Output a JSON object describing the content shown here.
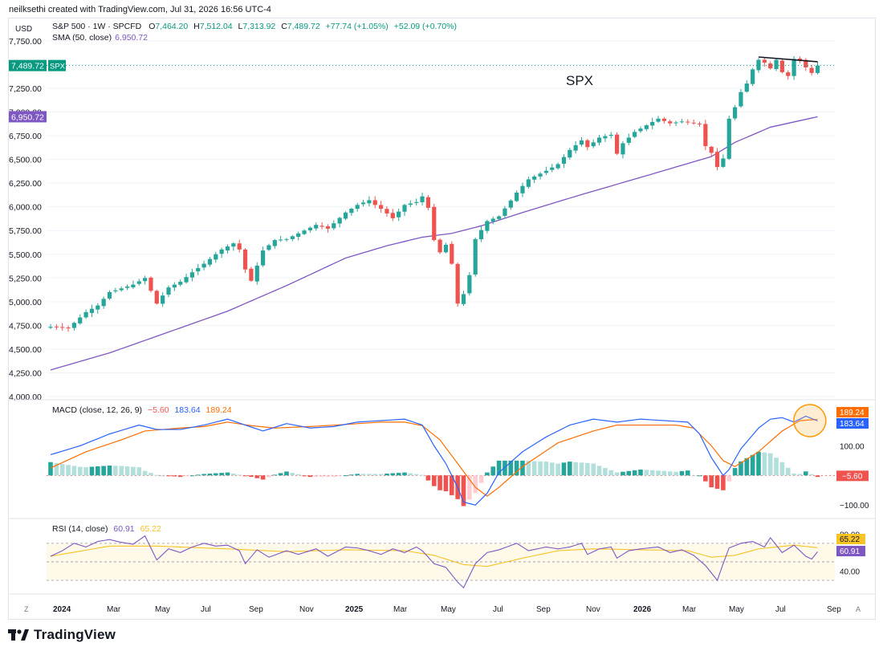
{
  "created_by": "neilksethi created with TradingView.com, Jul 31, 2026 16:56 UTC-4",
  "brand": "TradingView",
  "colors": {
    "up": "#26a69a",
    "down": "#ef5350",
    "sma": "#7e57c2",
    "macd": "#2962ff",
    "signal": "#ff6d00",
    "rsi": "#7e57c2",
    "rsi_ma": "#f7c325",
    "price_line": "#089981"
  },
  "header": {
    "currency": "USD",
    "title": "S&P 500 · 1W · SPCFD",
    "o_label": "O",
    "o_value": "7,464.20",
    "h_label": "H",
    "h_value": "7,512.04",
    "l_label": "L",
    "l_value": "7,313.92",
    "c_label": "C",
    "c_value": "7,489.72",
    "change": "+77.74 (+1.05%)",
    "change2": "+52.09 (+0.70%)",
    "sma_label": "SMA (50, close)",
    "sma_value": "6,950.72"
  },
  "annotation": "SPX",
  "price_tag": {
    "value": "7,489.72",
    "symbol": "SPX"
  },
  "sma_tag": "6,950.72",
  "macd_header": {
    "label": "MACD (close, 12, 26, 9)",
    "hist": "−5.60",
    "macd": "183.64",
    "signal": "189.24"
  },
  "rsi_header": {
    "label": "RSI (14, close)",
    "rsi": "60.91",
    "ma": "65.22"
  },
  "x_axis_labels": [
    "2024",
    "Mar",
    "May",
    "Jul",
    "Sep",
    "Nov",
    "2025",
    "Mar",
    "May",
    "Jul",
    "Sep",
    "Nov",
    "2026",
    "Mar",
    "May",
    "Jul",
    "Sep"
  ],
  "corner_left": "Z",
  "corner_right": "A",
  "chart_data": [
    {
      "type": "candlestick",
      "title": "S&P 500 · 1W · SPCFD",
      "ylabel": "USD",
      "ylim": [
        4000,
        7800
      ],
      "y_ticks": [
        "7,750.00",
        "7,500.00",
        "7,250.00",
        "7,000.00",
        "6,750.00",
        "6,500.00",
        "6,250.00",
        "6,000.00",
        "5,750.00",
        "5,500.00",
        "5,250.00",
        "5,000.00",
        "4,750.00",
        "4,500.00",
        "4,250.00",
        "4,000.00"
      ],
      "y_tick_values": [
        7750,
        7500,
        7250,
        7000,
        6750,
        6500,
        6250,
        6000,
        5750,
        5500,
        5250,
        5000,
        4750,
        4500,
        4250,
        4000
      ],
      "close_anchors": [
        [
          0,
          4735
        ],
        [
          3,
          4720
        ],
        [
          6,
          4890
        ],
        [
          8,
          4960
        ],
        [
          10,
          5100
        ],
        [
          12,
          5140
        ],
        [
          14,
          5180
        ],
        [
          16,
          5250
        ],
        [
          18,
          4980
        ],
        [
          20,
          5150
        ],
        [
          22,
          5210
        ],
        [
          24,
          5310
        ],
        [
          26,
          5400
        ],
        [
          29,
          5550
        ],
        [
          31,
          5615
        ],
        [
          32,
          5550
        ],
        [
          33,
          5340
        ],
        [
          34,
          5220
        ],
        [
          36,
          5540
        ],
        [
          38,
          5650
        ],
        [
          40,
          5660
        ],
        [
          42,
          5720
        ],
        [
          45,
          5810
        ],
        [
          47,
          5770
        ],
        [
          50,
          5940
        ],
        [
          52,
          6020
        ],
        [
          54,
          6070
        ],
        [
          55,
          6020
        ],
        [
          56,
          5980
        ],
        [
          58,
          5880
        ],
        [
          60,
          6020
        ],
        [
          62,
          6050
        ],
        [
          63,
          6110
        ],
        [
          64,
          5990
        ],
        [
          65,
          5650
        ],
        [
          66,
          5520
        ],
        [
          67,
          5600
        ],
        [
          68,
          5400
        ],
        [
          69,
          4980
        ],
        [
          70,
          5080
        ],
        [
          71,
          5280
        ],
        [
          72,
          5660
        ],
        [
          74,
          5850
        ],
        [
          76,
          5900
        ],
        [
          79,
          6150
        ],
        [
          81,
          6290
        ],
        [
          84,
          6380
        ],
        [
          86,
          6450
        ],
        [
          88,
          6600
        ],
        [
          90,
          6700
        ],
        [
          91,
          6630
        ],
        [
          93,
          6730
        ],
        [
          95,
          6760
        ],
        [
          96,
          6560
        ],
        [
          97,
          6670
        ],
        [
          99,
          6790
        ],
        [
          101,
          6860
        ],
        [
          103,
          6930
        ],
        [
          105,
          6880
        ],
        [
          107,
          6900
        ],
        [
          109,
          6880
        ],
        [
          110,
          6870
        ],
        [
          111,
          6640
        ],
        [
          112,
          6570
        ],
        [
          113,
          6420
        ],
        [
          114,
          6510
        ],
        [
          115,
          6930
        ],
        [
          116,
          7050
        ],
        [
          117,
          7210
        ],
        [
          118,
          7300
        ],
        [
          119,
          7450
        ],
        [
          120,
          7550
        ],
        [
          121,
          7520
        ],
        [
          122,
          7460
        ],
        [
          123,
          7550
        ],
        [
          124,
          7420
        ],
        [
          125,
          7380
        ],
        [
          126,
          7560
        ],
        [
          127,
          7550
        ],
        [
          128,
          7470
        ],
        [
          129,
          7412
        ],
        [
          130,
          7490
        ]
      ],
      "sma": {
        "name": "SMA (50, close)",
        "anchors": [
          [
            0,
            4280
          ],
          [
            10,
            4460
          ],
          [
            20,
            4680
          ],
          [
            30,
            4900
          ],
          [
            40,
            5170
          ],
          [
            50,
            5460
          ],
          [
            57,
            5590
          ],
          [
            63,
            5680
          ],
          [
            68,
            5720
          ],
          [
            73,
            5800
          ],
          [
            80,
            5940
          ],
          [
            90,
            6130
          ],
          [
            100,
            6310
          ],
          [
            106,
            6420
          ],
          [
            112,
            6530
          ],
          [
            116,
            6680
          ],
          [
            122,
            6840
          ],
          [
            130,
            6950
          ]
        ]
      },
      "trendline": {
        "from": [
          120,
          7580
        ],
        "to": [
          130,
          7530
        ]
      },
      "last_close": 7489.72
    },
    {
      "type": "macd",
      "title": "MACD (close, 12, 26, 9)",
      "ylim": [
        -140,
        250
      ],
      "y_ticks": [
        "100.00",
        "−100.00"
      ],
      "y_tick_values": [
        100,
        -100
      ],
      "macd": {
        "name": "MACD",
        "anchors": [
          [
            0,
            70
          ],
          [
            5,
            100
          ],
          [
            10,
            140
          ],
          [
            15,
            170
          ],
          [
            18,
            155
          ],
          [
            22,
            155
          ],
          [
            26,
            170
          ],
          [
            30,
            190
          ],
          [
            33,
            170
          ],
          [
            36,
            150
          ],
          [
            40,
            175
          ],
          [
            44,
            160
          ],
          [
            48,
            165
          ],
          [
            52,
            180
          ],
          [
            56,
            185
          ],
          [
            60,
            190
          ],
          [
            63,
            170
          ],
          [
            65,
            100
          ],
          [
            67,
            40
          ],
          [
            69,
            -40
          ],
          [
            70,
            -90
          ],
          [
            72,
            -100
          ],
          [
            74,
            -60
          ],
          [
            76,
            10
          ],
          [
            80,
            80
          ],
          [
            84,
            130
          ],
          [
            88,
            170
          ],
          [
            92,
            190
          ],
          [
            96,
            180
          ],
          [
            100,
            190
          ],
          [
            104,
            185
          ],
          [
            108,
            180
          ],
          [
            110,
            140
          ],
          [
            112,
            60
          ],
          [
            114,
            0
          ],
          [
            115,
            20
          ],
          [
            117,
            90
          ],
          [
            120,
            160
          ],
          [
            122,
            190
          ],
          [
            124,
            195
          ],
          [
            126,
            180
          ],
          [
            128,
            200
          ],
          [
            130,
            184
          ]
        ]
      },
      "signal": {
        "name": "Signal",
        "anchors": [
          [
            0,
            25
          ],
          [
            6,
            80
          ],
          [
            12,
            120
          ],
          [
            16,
            150
          ],
          [
            22,
            160
          ],
          [
            26,
            165
          ],
          [
            30,
            180
          ],
          [
            34,
            168
          ],
          [
            38,
            160
          ],
          [
            44,
            165
          ],
          [
            50,
            172
          ],
          [
            56,
            180
          ],
          [
            60,
            180
          ],
          [
            63,
            168
          ],
          [
            66,
            120
          ],
          [
            69,
            40
          ],
          [
            72,
            -40
          ],
          [
            74,
            -70
          ],
          [
            76,
            -40
          ],
          [
            80,
            30
          ],
          [
            86,
            110
          ],
          [
            92,
            150
          ],
          [
            96,
            170
          ],
          [
            100,
            170
          ],
          [
            106,
            170
          ],
          [
            109,
            160
          ],
          [
            112,
            100
          ],
          [
            114,
            50
          ],
          [
            116,
            30
          ],
          [
            120,
            80
          ],
          [
            124,
            150
          ],
          [
            127,
            185
          ],
          [
            130,
            189
          ]
        ]
      },
      "highlight_circle": {
        "bar": 128,
        "value": 185
      }
    },
    {
      "type": "rsi",
      "title": "RSI (14, close)",
      "ylim": [
        17,
        95
      ],
      "y_ticks": [
        "80.00",
        "40.00"
      ],
      "y_tick_values": [
        80,
        40
      ],
      "band": [
        30,
        70
      ],
      "rsi": {
        "name": "RSI",
        "anchors": [
          [
            0,
            56
          ],
          [
            2,
            62
          ],
          [
            4,
            70
          ],
          [
            6,
            66
          ],
          [
            8,
            72
          ],
          [
            10,
            74
          ],
          [
            12,
            71
          ],
          [
            14,
            69
          ],
          [
            16,
            78
          ],
          [
            18,
            52
          ],
          [
            20,
            64
          ],
          [
            22,
            60
          ],
          [
            24,
            66
          ],
          [
            26,
            70
          ],
          [
            28,
            67
          ],
          [
            30,
            68
          ],
          [
            32,
            62
          ],
          [
            33,
            48
          ],
          [
            35,
            63
          ],
          [
            37,
            55
          ],
          [
            40,
            62
          ],
          [
            42,
            58
          ],
          [
            45,
            64
          ],
          [
            47,
            56
          ],
          [
            50,
            66
          ],
          [
            52,
            65
          ],
          [
            54,
            62
          ],
          [
            56,
            58
          ],
          [
            58,
            64
          ],
          [
            60,
            60
          ],
          [
            62,
            66
          ],
          [
            63,
            62
          ],
          [
            65,
            48
          ],
          [
            67,
            44
          ],
          [
            69,
            28
          ],
          [
            70,
            22
          ],
          [
            72,
            48
          ],
          [
            74,
            60
          ],
          [
            76,
            63
          ],
          [
            79,
            70
          ],
          [
            81,
            62
          ],
          [
            84,
            66
          ],
          [
            86,
            64
          ],
          [
            88,
            66
          ],
          [
            90,
            70
          ],
          [
            91,
            58
          ],
          [
            93,
            64
          ],
          [
            95,
            66
          ],
          [
            96,
            54
          ],
          [
            98,
            62
          ],
          [
            100,
            64
          ],
          [
            103,
            66
          ],
          [
            105,
            60
          ],
          [
            107,
            63
          ],
          [
            109,
            57
          ],
          [
            111,
            46
          ],
          [
            113,
            30
          ],
          [
            114,
            48
          ],
          [
            115,
            65
          ],
          [
            117,
            70
          ],
          [
            119,
            72
          ],
          [
            121,
            66
          ],
          [
            122,
            76
          ],
          [
            124,
            60
          ],
          [
            126,
            68
          ],
          [
            128,
            56
          ],
          [
            129,
            53
          ],
          [
            130,
            60.91
          ]
        ]
      },
      "ma": {
        "name": "RSI-based MA",
        "anchors": [
          [
            0,
            56
          ],
          [
            10,
            67
          ],
          [
            18,
            67
          ],
          [
            30,
            64
          ],
          [
            40,
            61
          ],
          [
            50,
            63
          ],
          [
            60,
            62
          ],
          [
            65,
            57
          ],
          [
            70,
            47
          ],
          [
            74,
            45
          ],
          [
            80,
            54
          ],
          [
            86,
            62
          ],
          [
            92,
            64
          ],
          [
            100,
            63
          ],
          [
            108,
            62
          ],
          [
            112,
            55
          ],
          [
            116,
            57
          ],
          [
            120,
            64
          ],
          [
            126,
            68
          ],
          [
            130,
            65.22
          ]
        ]
      }
    }
  ]
}
